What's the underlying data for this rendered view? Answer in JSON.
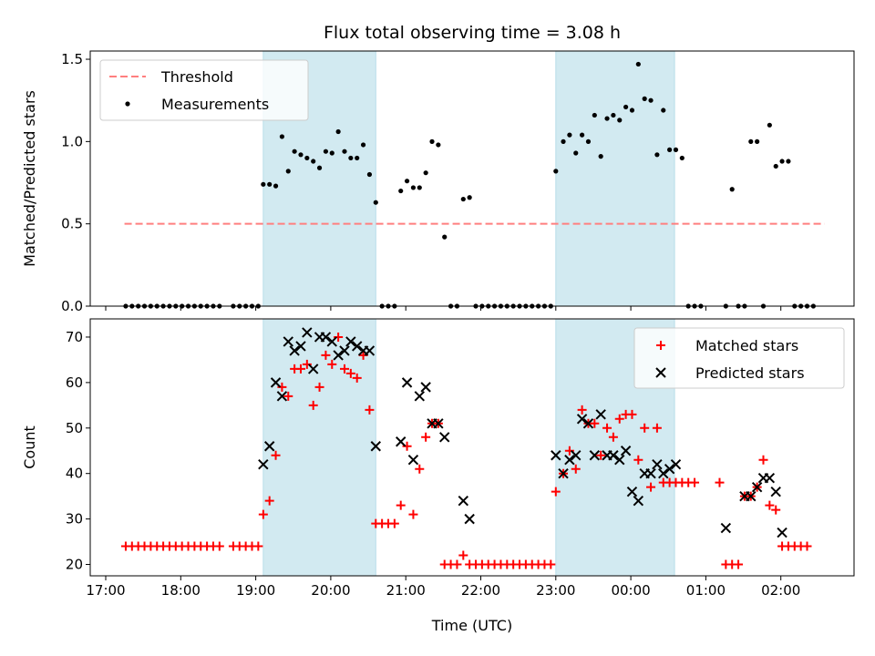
{
  "chart_data": {
    "title": "Flux total observing time = 3.08 h",
    "xlabel": "Time (UTC)",
    "x_ticks": [
      "17:00",
      "18:00",
      "19:00",
      "20:00",
      "21:00",
      "22:00",
      "23:00",
      "00:00",
      "01:00",
      "02:00"
    ],
    "shaded_intervals": [
      [
        "19:06",
        "20:36"
      ],
      [
        "23:00",
        "00:35"
      ]
    ],
    "top": {
      "type": "scatter",
      "ylabel": "Matched/Predicted stars",
      "ylim": [
        0,
        1.55
      ],
      "y_ticks": [
        0.0,
        0.5,
        1.0,
        1.5
      ],
      "legend_position": "top-left",
      "threshold": {
        "name": "Threshold",
        "value": 0.5,
        "x_range": [
          "17:15",
          "02:35"
        ],
        "color": "#ff7f7f"
      },
      "measurements": {
        "name": "Measurements",
        "color": "#000000",
        "points": [
          [
            "17:16",
            0
          ],
          [
            "17:21",
            0
          ],
          [
            "17:26",
            0
          ],
          [
            "17:31",
            0
          ],
          [
            "17:36",
            0
          ],
          [
            "17:41",
            0
          ],
          [
            "17:46",
            0
          ],
          [
            "17:51",
            0
          ],
          [
            "17:56",
            0
          ],
          [
            "18:01",
            0
          ],
          [
            "18:06",
            0
          ],
          [
            "18:11",
            0
          ],
          [
            "18:16",
            0
          ],
          [
            "18:21",
            0
          ],
          [
            "18:26",
            0
          ],
          [
            "18:31",
            0
          ],
          [
            "18:42",
            0
          ],
          [
            "18:47",
            0
          ],
          [
            "18:52",
            0
          ],
          [
            "18:57",
            0
          ],
          [
            "19:02",
            0
          ],
          [
            "19:06",
            0.74
          ],
          [
            "19:11",
            0.74
          ],
          [
            "19:16",
            0.73
          ],
          [
            "19:21",
            1.03
          ],
          [
            "19:26",
            0.82
          ],
          [
            "19:31",
            0.94
          ],
          [
            "19:36",
            0.92
          ],
          [
            "19:41",
            0.9
          ],
          [
            "19:46",
            0.88
          ],
          [
            "19:51",
            0.84
          ],
          [
            "19:56",
            0.94
          ],
          [
            "20:01",
            0.93
          ],
          [
            "20:06",
            1.06
          ],
          [
            "20:11",
            0.94
          ],
          [
            "20:16",
            0.9
          ],
          [
            "20:21",
            0.9
          ],
          [
            "20:26",
            0.98
          ],
          [
            "20:31",
            0.8
          ],
          [
            "20:36",
            0.63
          ],
          [
            "20:41",
            0
          ],
          [
            "20:46",
            0
          ],
          [
            "20:51",
            0
          ],
          [
            "20:56",
            0.7
          ],
          [
            "21:01",
            0.76
          ],
          [
            "21:06",
            0.72
          ],
          [
            "21:11",
            0.72
          ],
          [
            "21:16",
            0.81
          ],
          [
            "21:21",
            1.0
          ],
          [
            "21:26",
            0.98
          ],
          [
            "21:31",
            0.42
          ],
          [
            "21:36",
            0
          ],
          [
            "21:41",
            0
          ],
          [
            "21:46",
            0.65
          ],
          [
            "21:51",
            0.66
          ],
          [
            "21:56",
            0
          ],
          [
            "22:01",
            0
          ],
          [
            "22:06",
            0
          ],
          [
            "22:11",
            0
          ],
          [
            "22:16",
            0
          ],
          [
            "22:21",
            0
          ],
          [
            "22:26",
            0
          ],
          [
            "22:31",
            0
          ],
          [
            "22:36",
            0
          ],
          [
            "22:41",
            0
          ],
          [
            "22:46",
            0
          ],
          [
            "22:51",
            0
          ],
          [
            "22:56",
            0
          ],
          [
            "23:00",
            0.82
          ],
          [
            "23:06",
            1.0
          ],
          [
            "23:11",
            1.04
          ],
          [
            "23:16",
            0.93
          ],
          [
            "23:21",
            1.04
          ],
          [
            "23:26",
            1.0
          ],
          [
            "23:31",
            1.16
          ],
          [
            "23:36",
            0.91
          ],
          [
            "23:41",
            1.14
          ],
          [
            "23:46",
            1.16
          ],
          [
            "23:51",
            1.13
          ],
          [
            "23:56",
            1.21
          ],
          [
            "00:01",
            1.19
          ],
          [
            "00:06",
            1.47
          ],
          [
            "00:11",
            1.26
          ],
          [
            "00:16",
            1.25
          ],
          [
            "00:21",
            0.92
          ],
          [
            "00:26",
            1.19
          ],
          [
            "00:31",
            0.95
          ],
          [
            "00:36",
            0.95
          ],
          [
            "00:41",
            0.9
          ],
          [
            "00:46",
            0
          ],
          [
            "00:51",
            0
          ],
          [
            "00:56",
            0
          ],
          [
            "01:16",
            0
          ],
          [
            "01:26",
            0
          ],
          [
            "01:31",
            0
          ],
          [
            "01:46",
            0
          ],
          [
            "01:21",
            0.71
          ],
          [
            "01:36",
            1.0
          ],
          [
            "01:41",
            1.0
          ],
          [
            "01:51",
            1.1
          ],
          [
            "01:56",
            0.85
          ],
          [
            "02:01",
            0.88
          ],
          [
            "02:06",
            0.88
          ],
          [
            "02:11",
            0
          ],
          [
            "02:16",
            0
          ],
          [
            "02:21",
            0
          ],
          [
            "02:26",
            0
          ]
        ]
      }
    },
    "bottom": {
      "type": "scatter",
      "ylabel": "Count",
      "ylim": [
        17.5,
        74
      ],
      "y_ticks": [
        20,
        30,
        40,
        50,
        60,
        70
      ],
      "legend_position": "top-right",
      "series": [
        {
          "name": "Matched stars",
          "marker": "+",
          "color": "#ff0000",
          "points": [
            [
              "17:16",
              24
            ],
            [
              "17:21",
              24
            ],
            [
              "17:26",
              24
            ],
            [
              "17:31",
              24
            ],
            [
              "17:36",
              24
            ],
            [
              "17:41",
              24
            ],
            [
              "17:46",
              24
            ],
            [
              "17:51",
              24
            ],
            [
              "17:56",
              24
            ],
            [
              "18:01",
              24
            ],
            [
              "18:06",
              24
            ],
            [
              "18:11",
              24
            ],
            [
              "18:16",
              24
            ],
            [
              "18:21",
              24
            ],
            [
              "18:26",
              24
            ],
            [
              "18:31",
              24
            ],
            [
              "18:42",
              24
            ],
            [
              "18:47",
              24
            ],
            [
              "18:52",
              24
            ],
            [
              "18:57",
              24
            ],
            [
              "19:02",
              24
            ],
            [
              "19:06",
              31
            ],
            [
              "19:11",
              34
            ],
            [
              "19:16",
              44
            ],
            [
              "19:21",
              59
            ],
            [
              "19:26",
              57
            ],
            [
              "19:31",
              63
            ],
            [
              "19:36",
              63
            ],
            [
              "19:41",
              64
            ],
            [
              "19:46",
              55
            ],
            [
              "19:51",
              59
            ],
            [
              "19:56",
              66
            ],
            [
              "20:01",
              64
            ],
            [
              "20:06",
              70
            ],
            [
              "20:11",
              63
            ],
            [
              "20:16",
              62
            ],
            [
              "20:21",
              61
            ],
            [
              "20:26",
              66
            ],
            [
              "20:31",
              54
            ],
            [
              "20:36",
              29
            ],
            [
              "20:41",
              29
            ],
            [
              "20:46",
              29
            ],
            [
              "20:51",
              29
            ],
            [
              "20:56",
              33
            ],
            [
              "21:01",
              46
            ],
            [
              "21:06",
              31
            ],
            [
              "21:11",
              41
            ],
            [
              "21:16",
              48
            ],
            [
              "21:21",
              51
            ],
            [
              "21:26",
              51
            ],
            [
              "21:31",
              20
            ],
            [
              "21:36",
              20
            ],
            [
              "21:41",
              20
            ],
            [
              "21:46",
              22
            ],
            [
              "21:51",
              20
            ],
            [
              "21:56",
              20
            ],
            [
              "22:01",
              20
            ],
            [
              "22:06",
              20
            ],
            [
              "22:11",
              20
            ],
            [
              "22:16",
              20
            ],
            [
              "22:21",
              20
            ],
            [
              "22:26",
              20
            ],
            [
              "22:31",
              20
            ],
            [
              "22:36",
              20
            ],
            [
              "22:41",
              20
            ],
            [
              "22:46",
              20
            ],
            [
              "22:51",
              20
            ],
            [
              "22:56",
              20
            ],
            [
              "23:00",
              36
            ],
            [
              "23:06",
              40
            ],
            [
              "23:11",
              45
            ],
            [
              "23:16",
              41
            ],
            [
              "23:21",
              54
            ],
            [
              "23:26",
              51
            ],
            [
              "23:31",
              51
            ],
            [
              "23:36",
              44
            ],
            [
              "23:41",
              50
            ],
            [
              "23:46",
              48
            ],
            [
              "23:51",
              52
            ],
            [
              "23:56",
              53
            ],
            [
              "00:01",
              53
            ],
            [
              "00:06",
              43
            ],
            [
              "00:11",
              50
            ],
            [
              "00:16",
              37
            ],
            [
              "00:21",
              50
            ],
            [
              "00:26",
              38
            ],
            [
              "00:31",
              38
            ],
            [
              "00:36",
              38
            ],
            [
              "00:41",
              38
            ],
            [
              "00:46",
              38
            ],
            [
              "00:51",
              38
            ],
            [
              "01:11",
              38
            ],
            [
              "01:16",
              20
            ],
            [
              "01:21",
              20
            ],
            [
              "01:26",
              20
            ],
            [
              "01:31",
              35
            ],
            [
              "01:36",
              35
            ],
            [
              "01:41",
              37
            ],
            [
              "01:46",
              43
            ],
            [
              "01:51",
              33
            ],
            [
              "01:56",
              32
            ],
            [
              "02:01",
              24
            ],
            [
              "02:06",
              24
            ],
            [
              "02:11",
              24
            ],
            [
              "02:16",
              24
            ],
            [
              "02:21",
              24
            ]
          ]
        },
        {
          "name": "Predicted stars",
          "marker": "x",
          "color": "#000000",
          "points": [
            [
              "19:06",
              42
            ],
            [
              "19:11",
              46
            ],
            [
              "19:16",
              60
            ],
            [
              "19:21",
              57
            ],
            [
              "19:26",
              69
            ],
            [
              "19:31",
              67
            ],
            [
              "19:36",
              68
            ],
            [
              "19:41",
              71
            ],
            [
              "19:46",
              63
            ],
            [
              "19:51",
              70
            ],
            [
              "19:56",
              70
            ],
            [
              "20:01",
              69
            ],
            [
              "20:06",
              66
            ],
            [
              "20:11",
              67
            ],
            [
              "20:16",
              69
            ],
            [
              "20:21",
              68
            ],
            [
              "20:26",
              67
            ],
            [
              "20:31",
              67
            ],
            [
              "20:36",
              46
            ],
            [
              "20:56",
              47
            ],
            [
              "21:01",
              60
            ],
            [
              "21:06",
              43
            ],
            [
              "21:11",
              57
            ],
            [
              "21:16",
              59
            ],
            [
              "21:21",
              51
            ],
            [
              "21:26",
              51
            ],
            [
              "21:31",
              48
            ],
            [
              "21:46",
              34
            ],
            [
              "21:51",
              30
            ],
            [
              "23:00",
              44
            ],
            [
              "23:06",
              40
            ],
            [
              "23:11",
              43
            ],
            [
              "23:16",
              44
            ],
            [
              "23:21",
              52
            ],
            [
              "23:26",
              51
            ],
            [
              "23:31",
              44
            ],
            [
              "23:36",
              53
            ],
            [
              "23:41",
              44
            ],
            [
              "23:46",
              44
            ],
            [
              "23:51",
              43
            ],
            [
              "23:56",
              45
            ],
            [
              "00:01",
              36
            ],
            [
              "00:06",
              34
            ],
            [
              "00:11",
              40
            ],
            [
              "00:16",
              40
            ],
            [
              "00:21",
              42
            ],
            [
              "00:26",
              40
            ],
            [
              "00:31",
              41
            ],
            [
              "00:36",
              42
            ],
            [
              "01:16",
              28
            ],
            [
              "01:31",
              35
            ],
            [
              "01:36",
              35
            ],
            [
              "01:41",
              37
            ],
            [
              "01:46",
              39
            ],
            [
              "01:51",
              39
            ],
            [
              "01:56",
              36
            ],
            [
              "02:01",
              27
            ]
          ]
        }
      ]
    }
  }
}
